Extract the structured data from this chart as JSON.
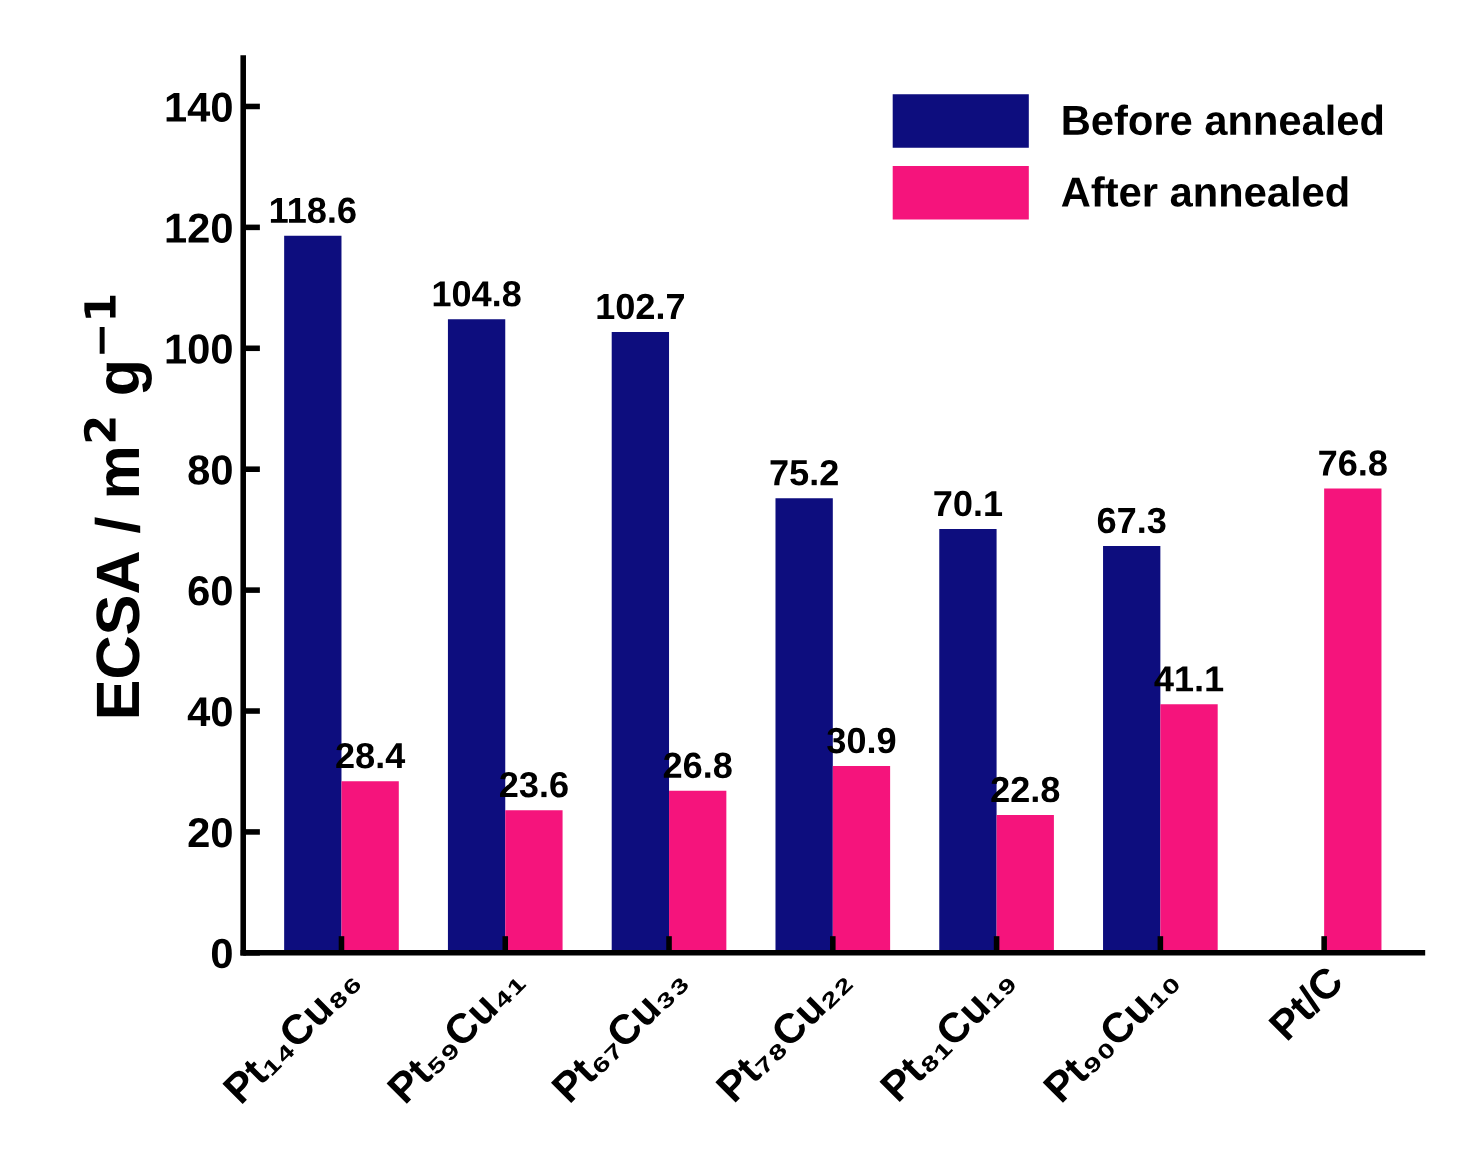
{
  "chart_data": {
    "type": "bar",
    "ylabel": "ECSA / m$^{2}$ g$^{−1}$",
    "categories": [
      "Pt₁₄Cu₈₆",
      "Pt₅₉Cu₄₁",
      "Pt₆₇Cu₃₃",
      "Pt₇₈Cu₂₂",
      "Pt₈₁Cu₁₉",
      "Pt₉₀Cu₁₀",
      "Pt/C"
    ],
    "series": [
      {
        "name": "Before annealed",
        "color": "#0d0d7e",
        "values": [
          118.6,
          104.8,
          102.7,
          75.2,
          70.1,
          67.3,
          null
        ]
      },
      {
        "name": "After annealed",
        "color": "#f5147c",
        "values": [
          28.4,
          23.6,
          26.8,
          30.9,
          22.8,
          41.1,
          76.8
        ]
      }
    ],
    "ylim": [
      0,
      148
    ],
    "yticks": [
      0,
      20,
      40,
      60,
      80,
      100,
      120,
      140
    ],
    "data_labels": true,
    "legend": "top right",
    "grid": false
  }
}
